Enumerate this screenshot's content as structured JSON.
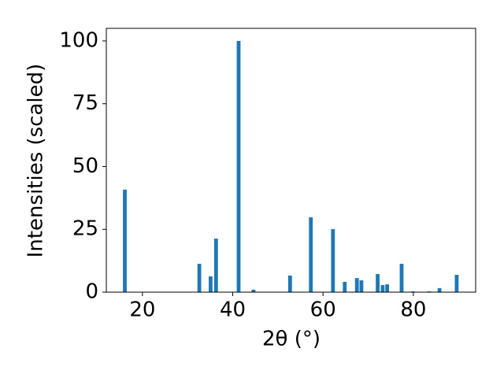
{
  "chart_data": {
    "type": "bar",
    "xlabel": "2θ (°)",
    "ylabel": "Intensities (scaled)",
    "x": [
      16.1,
      32.6,
      35.1,
      36.3,
      41.3,
      44.6,
      52.7,
      57.3,
      62.2,
      64.8,
      67.5,
      68.5,
      72.1,
      73.2,
      74.2,
      77.4,
      79.9,
      83.5,
      85.8,
      89.6
    ],
    "values": [
      40.8,
      11.3,
      6.3,
      21.3,
      100,
      1,
      6.6,
      29.8,
      25.1,
      4.1,
      5.6,
      4.7,
      7.2,
      2.8,
      3.1,
      11.3,
      0.3,
      0.3,
      1.6,
      6.9
    ],
    "color": "#1f77b4",
    "xlim": [
      12,
      93.8
    ],
    "xticks": [
      20,
      40,
      60,
      80
    ],
    "ylim": [
      0,
      105
    ],
    "yticks": [
      0,
      25,
      50,
      75,
      100
    ],
    "grid": false
  }
}
